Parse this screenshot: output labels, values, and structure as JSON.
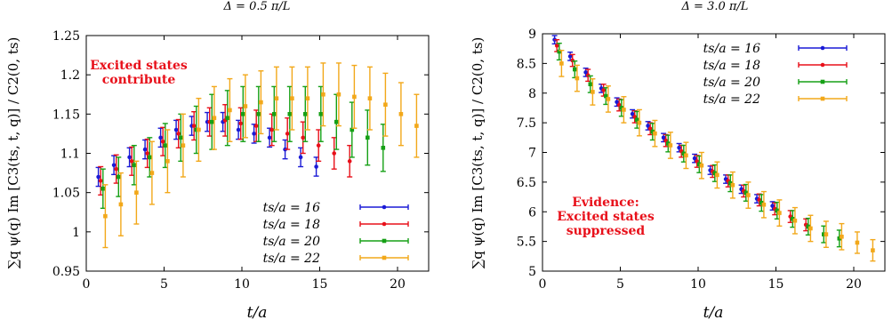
{
  "chart_data": [
    {
      "type": "scatter",
      "title": "Δ = 0.5 π/L",
      "xlabel": "t/a",
      "ylabel": "∑q ψ(q) Im [C3(ts, t, q)] / C2(0, ts)",
      "xlim": [
        0,
        22
      ],
      "ylim": [
        0.95,
        1.25
      ],
      "xticks": [
        0,
        5,
        10,
        15,
        20
      ],
      "yticks": [
        0.95,
        1,
        1.05,
        1.1,
        1.15,
        1.2,
        1.25
      ],
      "ytick_labels": [
        "0.95",
        "1",
        "1.05",
        "1.1",
        "1.15",
        "1.2",
        "1.25"
      ],
      "legend_position": "bottom-right",
      "annotation": [
        "Excited states",
        "contribute"
      ],
      "series": [
        {
          "name": "ts/a = 16",
          "color": "#1a1ad6",
          "marker": "circle",
          "x": [
            1,
            2,
            3,
            4,
            5,
            6,
            7,
            8,
            9,
            10,
            11,
            12,
            13,
            14,
            15
          ],
          "y": [
            1.07,
            1.085,
            1.095,
            1.105,
            1.12,
            1.13,
            1.135,
            1.14,
            1.14,
            1.13,
            1.125,
            1.12,
            1.105,
            1.095,
            1.083
          ],
          "err": [
            0.012,
            0.012,
            0.012,
            0.012,
            0.012,
            0.012,
            0.012,
            0.012,
            0.012,
            0.012,
            0.012,
            0.012,
            0.012,
            0.012,
            0.012
          ]
        },
        {
          "name": "ts/a = 18",
          "color": "#e8101a",
          "marker": "circle",
          "x": [
            1,
            2,
            3,
            4,
            5,
            6,
            7,
            8,
            9,
            10,
            11,
            12,
            13,
            14,
            15,
            16,
            17
          ],
          "y": [
            1.065,
            1.08,
            1.09,
            1.1,
            1.115,
            1.125,
            1.135,
            1.14,
            1.142,
            1.138,
            1.135,
            1.13,
            1.125,
            1.12,
            1.11,
            1.1,
            1.09
          ],
          "err": [
            0.018,
            0.018,
            0.018,
            0.018,
            0.018,
            0.018,
            0.018,
            0.018,
            0.02,
            0.02,
            0.02,
            0.02,
            0.02,
            0.02,
            0.02,
            0.02,
            0.02
          ]
        },
        {
          "name": "ts/a = 20",
          "color": "#16a016",
          "marker": "square",
          "x": [
            1,
            2,
            3,
            4,
            5,
            6,
            7,
            8,
            9,
            10,
            11,
            12,
            13,
            14,
            15,
            16,
            17,
            18,
            19
          ],
          "y": [
            1.055,
            1.07,
            1.085,
            1.095,
            1.11,
            1.12,
            1.13,
            1.14,
            1.145,
            1.15,
            1.15,
            1.15,
            1.15,
            1.15,
            1.15,
            1.14,
            1.13,
            1.12,
            1.107
          ],
          "err": [
            0.025,
            0.025,
            0.025,
            0.025,
            0.028,
            0.03,
            0.03,
            0.035,
            0.035,
            0.035,
            0.035,
            0.035,
            0.035,
            0.035,
            0.035,
            0.035,
            0.035,
            0.035,
            0.03
          ]
        },
        {
          "name": "ts/a = 22",
          "color": "#f2a81a",
          "marker": "square",
          "x": [
            1,
            2,
            3,
            4,
            5,
            6,
            7,
            8,
            9,
            10,
            11,
            12,
            13,
            14,
            15,
            16,
            17,
            18,
            19,
            20,
            21
          ],
          "y": [
            1.02,
            1.035,
            1.05,
            1.075,
            1.09,
            1.11,
            1.13,
            1.145,
            1.155,
            1.16,
            1.165,
            1.17,
            1.17,
            1.17,
            1.175,
            1.175,
            1.172,
            1.17,
            1.162,
            1.15,
            1.135
          ],
          "err": [
            0.04,
            0.04,
            0.04,
            0.04,
            0.04,
            0.04,
            0.04,
            0.04,
            0.04,
            0.04,
            0.04,
            0.04,
            0.04,
            0.04,
            0.04,
            0.04,
            0.04,
            0.04,
            0.04,
            0.04,
            0.04
          ]
        }
      ]
    },
    {
      "type": "scatter",
      "title": "Δ = 3.0 π/L",
      "xlabel": "t/a",
      "ylabel": "∑q ψ(q) Im [C3(ts, t, q)] / C2(0, ts)",
      "xlim": [
        0,
        22
      ],
      "ylim": [
        5,
        9
      ],
      "xticks": [
        0,
        5,
        10,
        15,
        20
      ],
      "yticks": [
        5,
        5.5,
        6,
        6.5,
        7,
        7.5,
        8,
        8.5,
        9
      ],
      "ytick_labels": [
        "5",
        "5.5",
        "6",
        "6.5",
        "7",
        "7.5",
        "8",
        "8.5",
        "9"
      ],
      "legend_position": "top-right",
      "annotation": [
        "Evidence:",
        "Excited states",
        "suppressed"
      ],
      "series": [
        {
          "name": "ts/a = 16",
          "color": "#1a1ad6",
          "marker": "circle",
          "x": [
            1,
            2,
            3,
            4,
            5,
            6,
            7,
            8,
            9,
            10,
            11,
            12,
            13,
            14,
            15
          ],
          "y": [
            8.9,
            8.62,
            8.35,
            8.08,
            7.85,
            7.65,
            7.45,
            7.25,
            7.08,
            6.9,
            6.7,
            6.55,
            6.38,
            6.22,
            6.1
          ],
          "err": [
            0.07,
            0.07,
            0.07,
            0.07,
            0.07,
            0.07,
            0.07,
            0.07,
            0.07,
            0.07,
            0.07,
            0.07,
            0.07,
            0.07,
            0.07
          ]
        },
        {
          "name": "ts/a = 18",
          "color": "#e8101a",
          "marker": "circle",
          "x": [
            1,
            2,
            3,
            4,
            5,
            6,
            7,
            8,
            9,
            10,
            11,
            12,
            13,
            14,
            15,
            16,
            17
          ],
          "y": [
            8.8,
            8.55,
            8.3,
            8.05,
            7.8,
            7.6,
            7.4,
            7.2,
            7.02,
            6.85,
            6.68,
            6.52,
            6.35,
            6.2,
            6.05,
            5.92,
            5.78
          ],
          "err": [
            0.1,
            0.1,
            0.1,
            0.1,
            0.1,
            0.1,
            0.1,
            0.1,
            0.1,
            0.1,
            0.1,
            0.1,
            0.1,
            0.1,
            0.1,
            0.1,
            0.1
          ]
        },
        {
          "name": "ts/a = 20",
          "color": "#16a016",
          "marker": "square",
          "x": [
            1,
            2,
            3,
            4,
            5,
            6,
            7,
            8,
            9,
            10,
            11,
            12,
            13,
            14,
            15,
            16,
            17,
            18,
            19
          ],
          "y": [
            8.7,
            8.4,
            8.15,
            7.95,
            7.75,
            7.55,
            7.35,
            7.15,
            6.98,
            6.8,
            6.65,
            6.48,
            6.32,
            6.15,
            6.02,
            5.88,
            5.75,
            5.62,
            5.55
          ],
          "err": [
            0.14,
            0.14,
            0.14,
            0.14,
            0.14,
            0.14,
            0.14,
            0.14,
            0.14,
            0.14,
            0.14,
            0.14,
            0.14,
            0.14,
            0.14,
            0.14,
            0.14,
            0.14,
            0.14
          ]
        },
        {
          "name": "ts/a = 22",
          "color": "#f2a81a",
          "marker": "square",
          "x": [
            1,
            2,
            3,
            4,
            5,
            6,
            7,
            8,
            9,
            10,
            11,
            12,
            13,
            14,
            15,
            16,
            17,
            18,
            19,
            20,
            21
          ],
          "y": [
            8.5,
            8.25,
            8.02,
            7.9,
            7.72,
            7.5,
            7.32,
            7.12,
            6.95,
            6.78,
            6.62,
            6.45,
            6.28,
            6.12,
            5.98,
            5.85,
            5.72,
            5.62,
            5.58,
            5.48,
            5.35
          ],
          "err": [
            0.22,
            0.22,
            0.22,
            0.22,
            0.22,
            0.22,
            0.22,
            0.22,
            0.22,
            0.22,
            0.22,
            0.22,
            0.22,
            0.22,
            0.22,
            0.22,
            0.22,
            0.22,
            0.22,
            0.18,
            0.18
          ]
        }
      ]
    }
  ]
}
